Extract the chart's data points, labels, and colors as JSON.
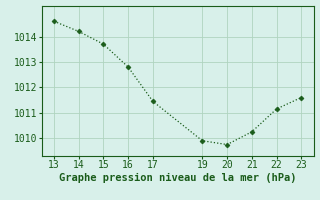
{
  "x": [
    13,
    14,
    15,
    16,
    17,
    19,
    20,
    21,
    22,
    23
  ],
  "y": [
    1014.6,
    1014.2,
    1013.7,
    1012.8,
    1011.45,
    1009.9,
    1009.75,
    1010.25,
    1011.15,
    1011.6
  ],
  "line_color": "#1a5c1a",
  "marker": "D",
  "marker_size": 2.5,
  "background_color": "#d8f0ea",
  "grid_color": "#b0d4c0",
  "xlabel": "Graphe pression niveau de la mer (hPa)",
  "xlabel_color": "#1a5c1a",
  "xlabel_fontsize": 7.5,
  "tick_color": "#1a5c1a",
  "tick_fontsize": 7,
  "ylim": [
    1009.3,
    1015.2
  ],
  "xlim": [
    12.5,
    23.5
  ],
  "yticks": [
    1010,
    1011,
    1012,
    1013,
    1014
  ],
  "xticks": [
    13,
    14,
    15,
    16,
    17,
    19,
    20,
    21,
    22,
    23
  ]
}
